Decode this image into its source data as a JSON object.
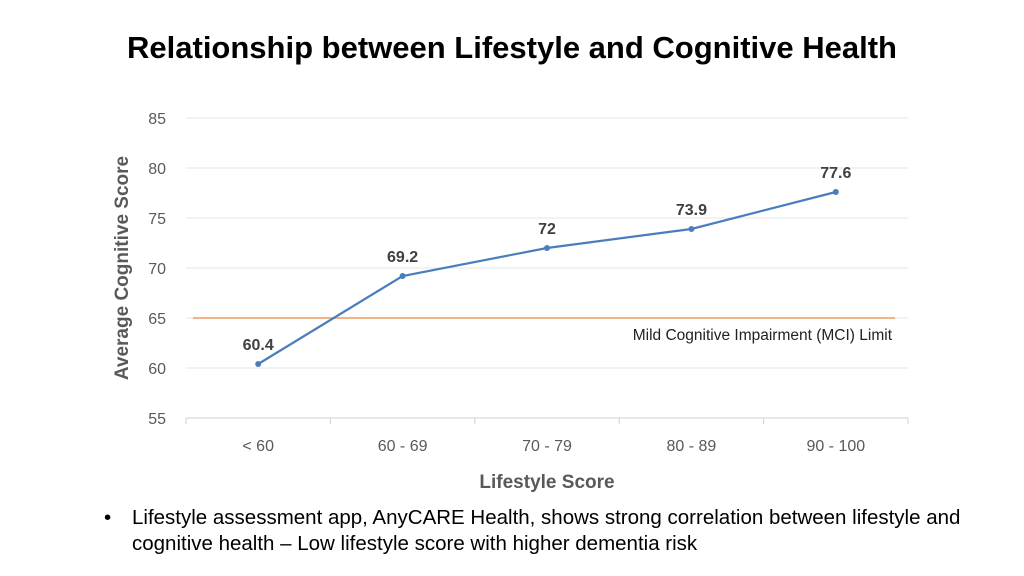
{
  "chart_data": {
    "type": "line",
    "title": "Relationship between Lifestyle and Cognitive Health",
    "xlabel": "Lifestyle Score",
    "ylabel": "Average Cognitive Score",
    "categories": [
      "< 60",
      "60 - 69",
      "70 - 79",
      "80 - 89",
      "90 - 100"
    ],
    "values": [
      60.4,
      69.2,
      72,
      73.9,
      77.6
    ],
    "data_labels": [
      "60.4",
      "69.2",
      "72",
      "73.9",
      "77.6"
    ],
    "ylim": [
      55,
      85
    ],
    "yticks": [
      55,
      60,
      65,
      70,
      75,
      80,
      85
    ],
    "grid": true,
    "reference_line": {
      "value": 65,
      "label": "Mild Cognitive Impairment (MCI) Limit",
      "color": "#f4b183"
    },
    "series_color": "#4a7ebb"
  },
  "bullets": [
    "Lifestyle assessment app, AnyCARE Health, shows strong correlation between lifestyle and cognitive health – Low lifestyle score with higher dementia risk"
  ]
}
